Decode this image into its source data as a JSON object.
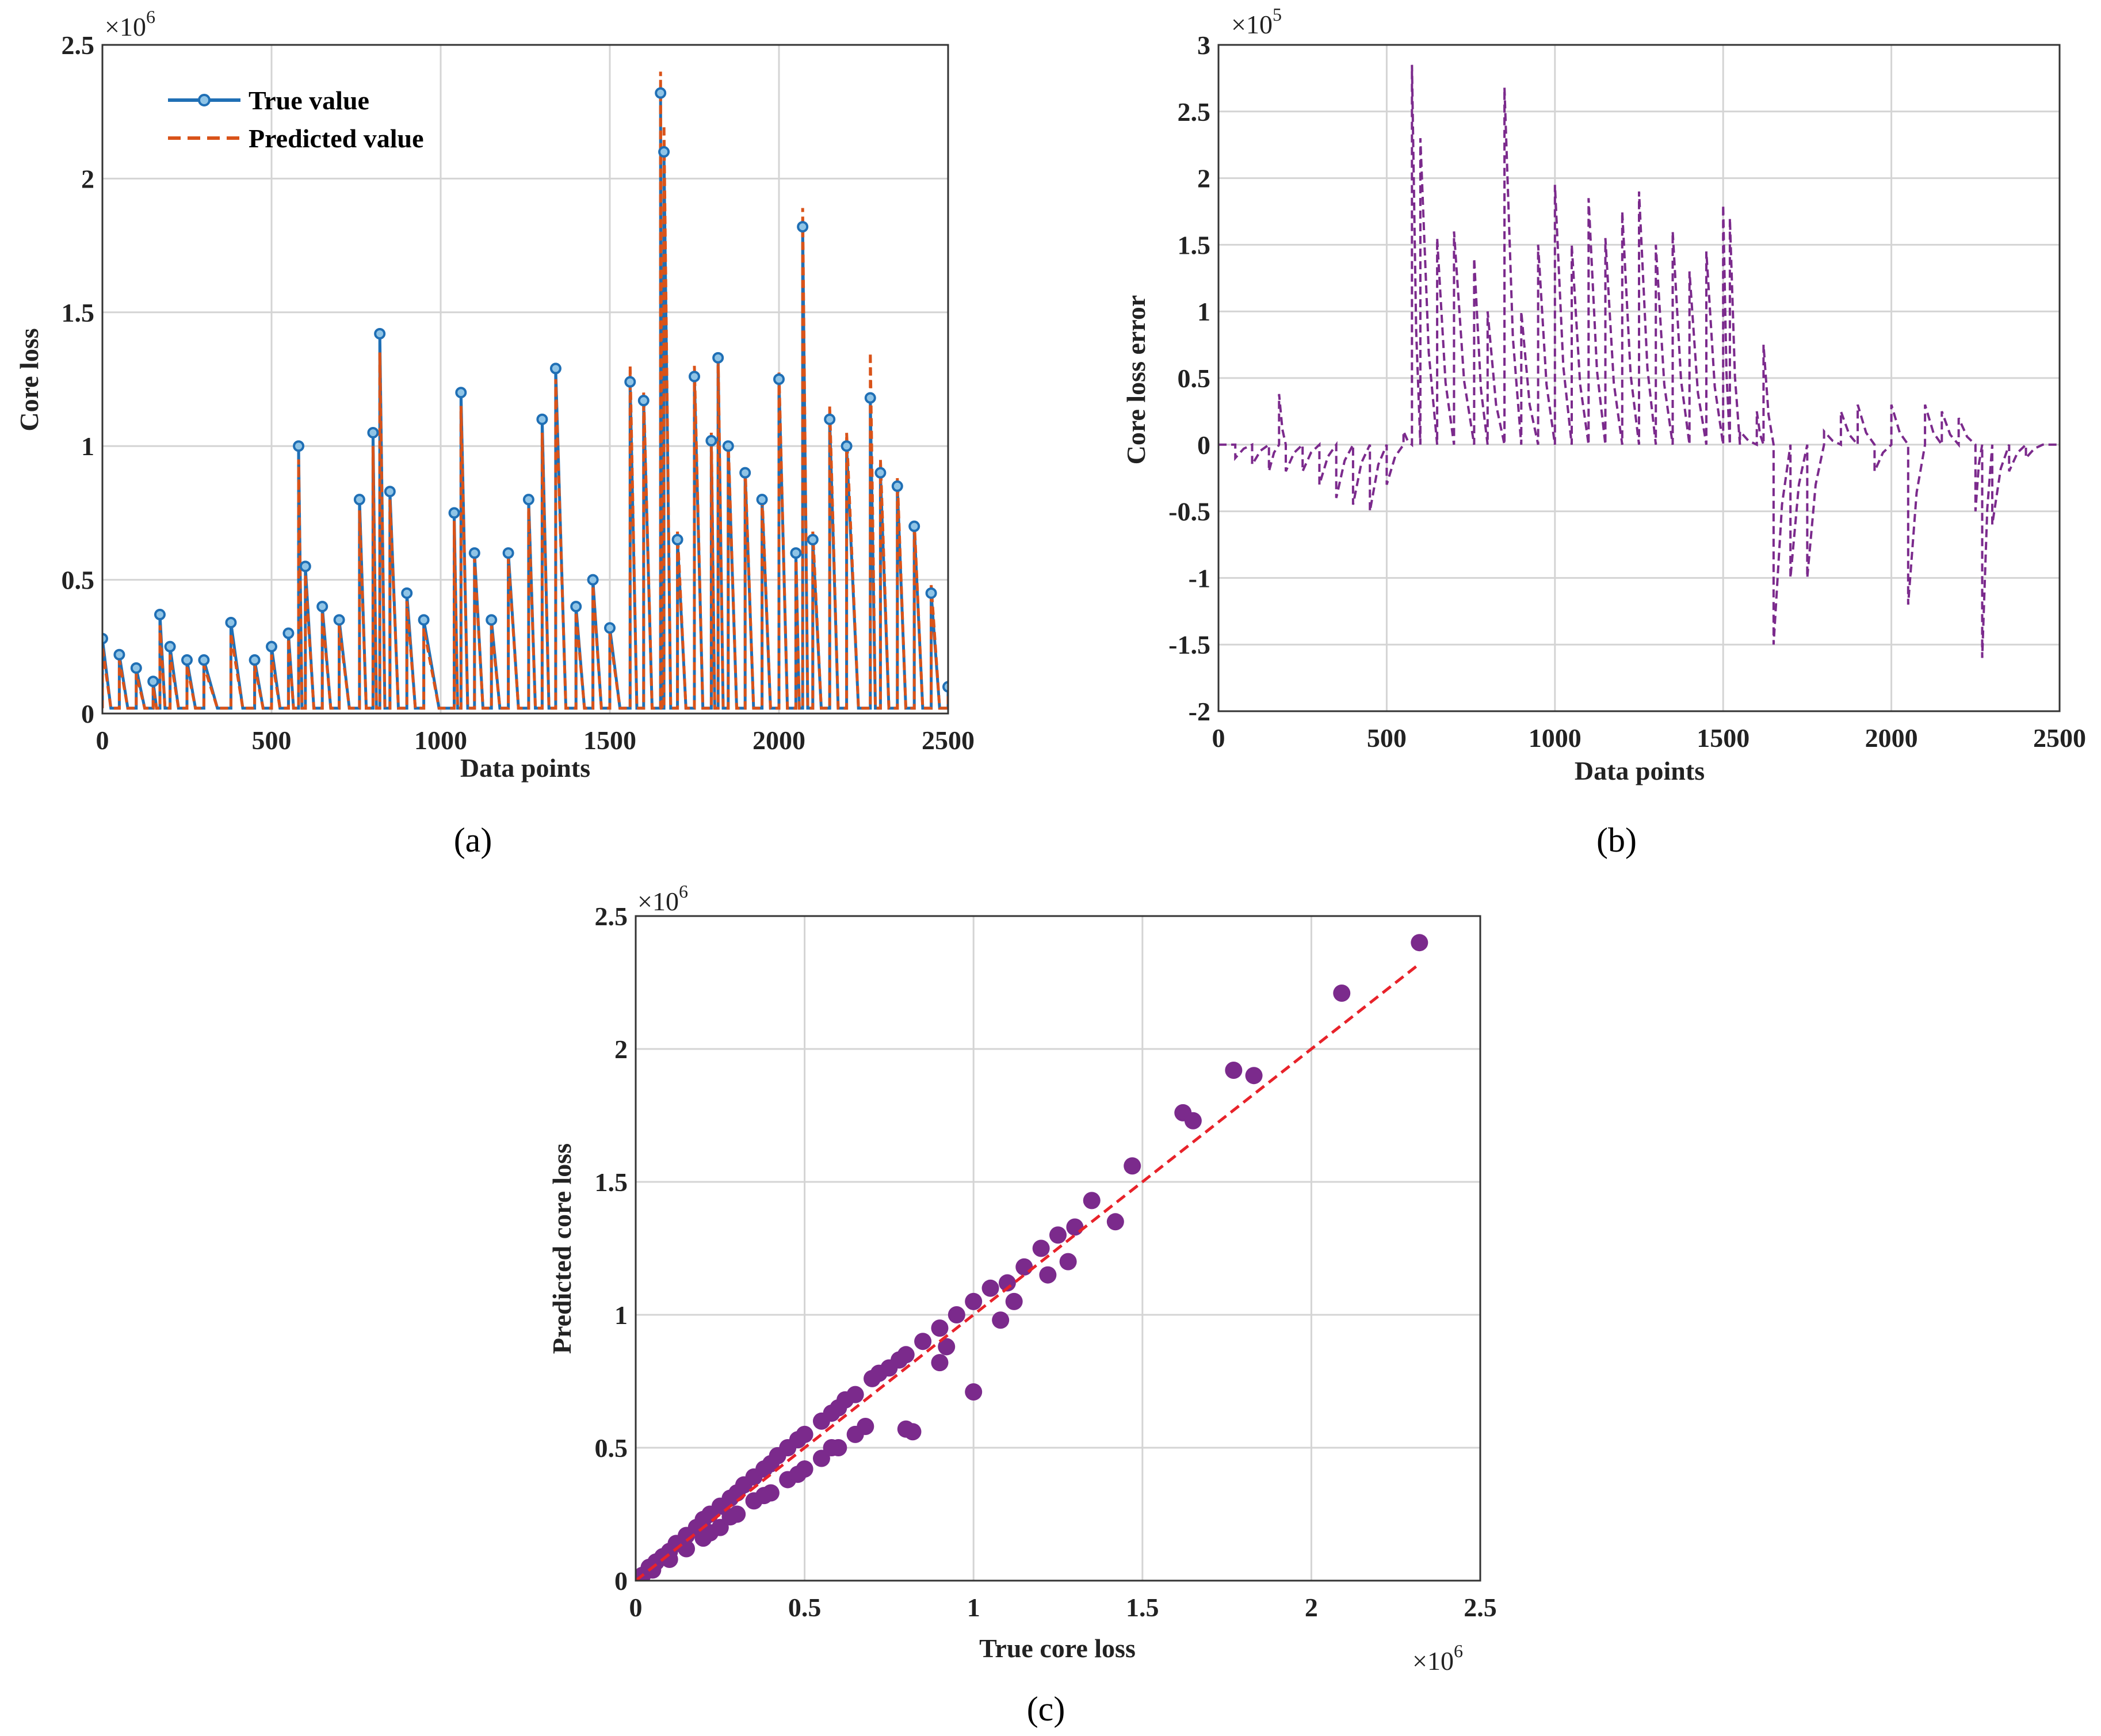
{
  "chart_data": [
    {
      "panel": "a",
      "type": "line",
      "caption": "(a)",
      "xlabel": "Data points",
      "ylabel": "Core loss",
      "y_scale_label": "×10",
      "y_scale_exp": "6",
      "xlim": [
        0,
        2500
      ],
      "ylim": [
        0,
        2.5
      ],
      "xticks": [
        0,
        500,
        1000,
        1500,
        2000,
        2500
      ],
      "yticks": [
        0,
        0.5,
        1,
        1.5,
        2,
        2.5
      ],
      "grid": true,
      "legend_position": "top-left",
      "legend": [
        "True value",
        "Predicted value"
      ],
      "colors": {
        "true": "#1f6fb5",
        "predicted": "#d95319"
      },
      "series": [
        {
          "name": "True value",
          "style": "solid-with-markers",
          "color": "#1f6fb5",
          "x": [
            0,
            50,
            100,
            150,
            170,
            200,
            250,
            300,
            380,
            450,
            500,
            550,
            580,
            600,
            650,
            700,
            760,
            800,
            820,
            850,
            900,
            950,
            1040,
            1060,
            1100,
            1150,
            1200,
            1260,
            1300,
            1340,
            1400,
            1450,
            1500,
            1560,
            1600,
            1650,
            1660,
            1700,
            1750,
            1800,
            1820,
            1850,
            1900,
            1950,
            2000,
            2050,
            2070,
            2100,
            2150,
            2200,
            2270,
            2300,
            2350,
            2400,
            2450,
            2500
          ],
          "y": [
            0.28,
            0.22,
            0.17,
            0.12,
            0.37,
            0.25,
            0.2,
            0.2,
            0.34,
            0.2,
            0.25,
            0.3,
            1.0,
            0.55,
            0.4,
            0.35,
            0.8,
            1.05,
            1.42,
            0.83,
            0.45,
            0.35,
            0.75,
            1.2,
            0.6,
            0.35,
            0.6,
            0.8,
            1.1,
            1.29,
            0.4,
            0.5,
            0.32,
            1.24,
            1.17,
            2.32,
            2.1,
            0.65,
            1.26,
            1.02,
            1.33,
            1.0,
            0.9,
            0.8,
            1.25,
            0.6,
            1.82,
            0.65,
            1.1,
            1.0,
            1.18,
            0.9,
            0.85,
            0.7,
            0.45,
            0.1
          ]
        },
        {
          "name": "Predicted value",
          "style": "dashed",
          "color": "#d95319",
          "x": [
            0,
            50,
            100,
            150,
            170,
            200,
            250,
            300,
            380,
            450,
            500,
            550,
            580,
            600,
            650,
            700,
            760,
            800,
            820,
            850,
            900,
            950,
            1040,
            1060,
            1100,
            1150,
            1200,
            1260,
            1300,
            1340,
            1400,
            1450,
            1500,
            1560,
            1600,
            1650,
            1660,
            1700,
            1750,
            1800,
            1820,
            1850,
            1900,
            1950,
            2000,
            2050,
            2070,
            2100,
            2150,
            2200,
            2270,
            2300,
            2350,
            2400,
            2450,
            2500
          ],
          "y": [
            0.25,
            0.2,
            0.15,
            0.1,
            0.33,
            0.22,
            0.18,
            0.18,
            0.3,
            0.18,
            0.22,
            0.28,
            0.95,
            0.52,
            0.38,
            0.33,
            0.76,
            1.0,
            1.35,
            0.8,
            0.42,
            0.32,
            0.72,
            1.15,
            0.58,
            0.33,
            0.58,
            0.77,
            1.05,
            1.25,
            0.38,
            0.48,
            0.3,
            1.3,
            1.2,
            2.4,
            2.2,
            0.68,
            1.3,
            1.05,
            1.35,
            1.02,
            0.92,
            0.82,
            1.28,
            0.62,
            1.89,
            0.68,
            1.15,
            1.05,
            1.35,
            0.95,
            0.88,
            0.72,
            0.48,
            0.12
          ]
        }
      ]
    },
    {
      "panel": "b",
      "type": "line",
      "caption": "(b)",
      "xlabel": "Data points",
      "ylabel": "Core loss error",
      "y_scale_label": "×10",
      "y_scale_exp": "5",
      "xlim": [
        0,
        2500
      ],
      "ylim": [
        -2,
        3
      ],
      "xticks": [
        0,
        500,
        1000,
        1500,
        2000,
        2500
      ],
      "yticks": [
        -2,
        -1.5,
        -1,
        -0.5,
        0,
        0.5,
        1,
        1.5,
        2,
        2.5,
        3
      ],
      "grid": true,
      "series": [
        {
          "name": "Core loss error",
          "style": "dashed",
          "color": "#7b2a8c",
          "x": [
            0,
            50,
            100,
            150,
            180,
            200,
            250,
            300,
            350,
            400,
            450,
            500,
            550,
            575,
            600,
            650,
            700,
            760,
            800,
            850,
            900,
            950,
            1000,
            1050,
            1100,
            1150,
            1200,
            1250,
            1300,
            1350,
            1400,
            1450,
            1500,
            1520,
            1550,
            1600,
            1620,
            1650,
            1700,
            1750,
            1800,
            1850,
            1900,
            1950,
            2000,
            2050,
            2100,
            2150,
            2200,
            2250,
            2270,
            2300,
            2350,
            2400,
            2450,
            2500
          ],
          "y": [
            0,
            -0.1,
            -0.15,
            -0.2,
            0.38,
            -0.2,
            -0.2,
            -0.3,
            -0.4,
            -0.45,
            -0.5,
            -0.3,
            0.1,
            2.85,
            2.3,
            1.55,
            1.6,
            1.4,
            1.0,
            2.68,
            1.0,
            1.5,
            1.95,
            1.5,
            1.85,
            1.55,
            1.75,
            1.9,
            1.5,
            1.6,
            1.3,
            1.45,
            1.8,
            1.7,
            0.1,
            0.25,
            0.75,
            -1.5,
            -1.0,
            -1.0,
            0.1,
            0.25,
            0.3,
            -0.2,
            0.3,
            -1.2,
            0.3,
            0.25,
            0.2,
            -0.5,
            -1.6,
            -0.6,
            -0.2,
            -0.1,
            0,
            0
          ]
        }
      ]
    },
    {
      "panel": "c",
      "type": "scatter",
      "caption": "(c)",
      "xlabel": "True core loss",
      "ylabel": "Predicted core loss",
      "x_scale_label": "×10",
      "x_scale_exp": "6",
      "y_scale_label": "×10",
      "y_scale_exp": "6",
      "xlim": [
        0,
        2.5
      ],
      "ylim": [
        0,
        2.5
      ],
      "xticks": [
        0,
        0.5,
        1,
        1.5,
        2,
        2.5
      ],
      "yticks": [
        0,
        0.5,
        1,
        1.5,
        2,
        2.5
      ],
      "grid": true,
      "colors": {
        "points": "#7b2a8c",
        "fit": "#e8222a"
      },
      "fit_line": {
        "x": [
          0,
          2.32
        ],
        "y": [
          0,
          2.32
        ]
      },
      "points": {
        "x": [
          0.02,
          0.04,
          0.06,
          0.08,
          0.1,
          0.12,
          0.15,
          0.18,
          0.2,
          0.22,
          0.25,
          0.28,
          0.3,
          0.32,
          0.35,
          0.38,
          0.4,
          0.42,
          0.45,
          0.48,
          0.5,
          0.55,
          0.58,
          0.6,
          0.62,
          0.65,
          0.7,
          0.72,
          0.75,
          0.78,
          0.8,
          0.85,
          0.9,
          0.95,
          1.0,
          1.05,
          1.1,
          1.15,
          1.2,
          1.25,
          1.3,
          1.35,
          1.42,
          1.47,
          1.62,
          1.65,
          1.77,
          1.83,
          2.09,
          2.32,
          0.22,
          0.3,
          0.4,
          0.5,
          0.6,
          0.8,
          0.82,
          1.0,
          0.35,
          0.45,
          0.55,
          0.65,
          0.25,
          0.15,
          0.1,
          0.05,
          0.2,
          0.28,
          0.38,
          0.48,
          0.58,
          0.68,
          0.9,
          0.92,
          1.08,
          1.12,
          1.22,
          1.28
        ],
        "y": [
          0.02,
          0.05,
          0.07,
          0.09,
          0.11,
          0.14,
          0.17,
          0.2,
          0.23,
          0.25,
          0.28,
          0.31,
          0.33,
          0.36,
          0.39,
          0.42,
          0.44,
          0.47,
          0.5,
          0.53,
          0.55,
          0.6,
          0.63,
          0.65,
          0.68,
          0.7,
          0.76,
          0.78,
          0.8,
          0.83,
          0.85,
          0.9,
          0.95,
          1.0,
          1.05,
          1.1,
          1.12,
          1.18,
          1.25,
          1.3,
          1.33,
          1.43,
          1.35,
          1.56,
          1.76,
          1.73,
          1.92,
          1.9,
          2.21,
          2.4,
          0.18,
          0.25,
          0.33,
          0.42,
          0.5,
          0.57,
          0.56,
          0.71,
          0.3,
          0.38,
          0.46,
          0.55,
          0.2,
          0.12,
          0.08,
          0.04,
          0.16,
          0.24,
          0.32,
          0.4,
          0.5,
          0.58,
          0.82,
          0.88,
          0.98,
          1.05,
          1.15,
          1.2
        ]
      }
    }
  ]
}
